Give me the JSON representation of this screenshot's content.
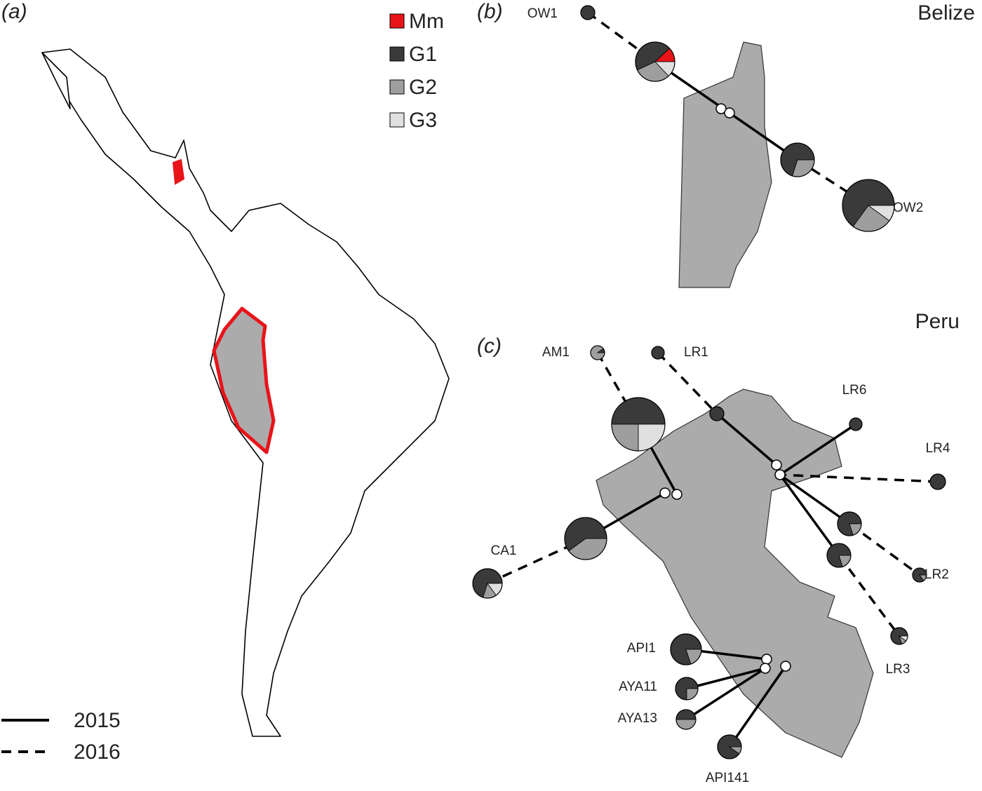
{
  "panels": {
    "a": "(a)",
    "b": "(b)",
    "c": "(c)"
  },
  "legend": {
    "groups": [
      {
        "name": "Mm",
        "color": "#e8141a"
      },
      {
        "name": "G1",
        "color": "#3a3a3a"
      },
      {
        "name": "G2",
        "color": "#9e9e9e"
      },
      {
        "name": "G3",
        "color": "#e0e0e0"
      }
    ]
  },
  "line_legend": [
    "2015",
    "2016"
  ],
  "regions": [
    "Belize",
    "Peru"
  ],
  "sites": [
    {
      "label": "OW1",
      "shares": [
        0,
        1,
        0,
        0
      ]
    },
    {
      "label": null,
      "shares": [
        0.12,
        0.45,
        0.3,
        0.13
      ]
    },
    {
      "label": null,
      "shares": [
        0,
        0.7,
        0.3,
        0
      ]
    },
    {
      "label": "OW2",
      "shares": [
        0,
        0.65,
        0.25,
        0.1
      ]
    },
    {
      "label": "AM1",
      "shares": [
        0,
        0.1,
        0.9,
        0
      ]
    },
    {
      "label": "LR1",
      "shares": [
        0,
        1,
        0,
        0
      ]
    },
    {
      "label": null,
      "shares": [
        0,
        0.5,
        0.25,
        0.25
      ]
    },
    {
      "label": "LR6",
      "shares": [
        0,
        1,
        0,
        0
      ]
    },
    {
      "label": null,
      "shares": [
        0,
        1,
        0,
        0
      ]
    },
    {
      "label": "LR4",
      "shares": [
        0,
        1,
        0,
        0
      ]
    },
    {
      "label": null,
      "shares": [
        0,
        0.8,
        0.2,
        0
      ]
    },
    {
      "label": null,
      "shares": [
        0,
        0.8,
        0.2,
        0
      ]
    },
    {
      "label": "LR2",
      "shares": [
        0,
        0.85,
        0.15,
        0
      ]
    },
    {
      "label": "LR3",
      "shares": [
        0,
        0.8,
        0.1,
        0.1
      ]
    },
    {
      "label": "CA1",
      "shares": [
        0,
        0.7,
        0.15,
        0.15
      ]
    },
    {
      "label": null,
      "shares": [
        0,
        0.6,
        0.4,
        0
      ]
    },
    {
      "label": "API1",
      "shares": [
        0,
        0.8,
        0.2,
        0
      ]
    },
    {
      "label": "AYA11",
      "shares": [
        0,
        0.75,
        0.25,
        0
      ]
    },
    {
      "label": "AYA13",
      "shares": [
        0,
        0.5,
        0.5,
        0
      ]
    },
    {
      "label": "API141",
      "shares": [
        0,
        0.9,
        0.1,
        0
      ]
    }
  ]
}
